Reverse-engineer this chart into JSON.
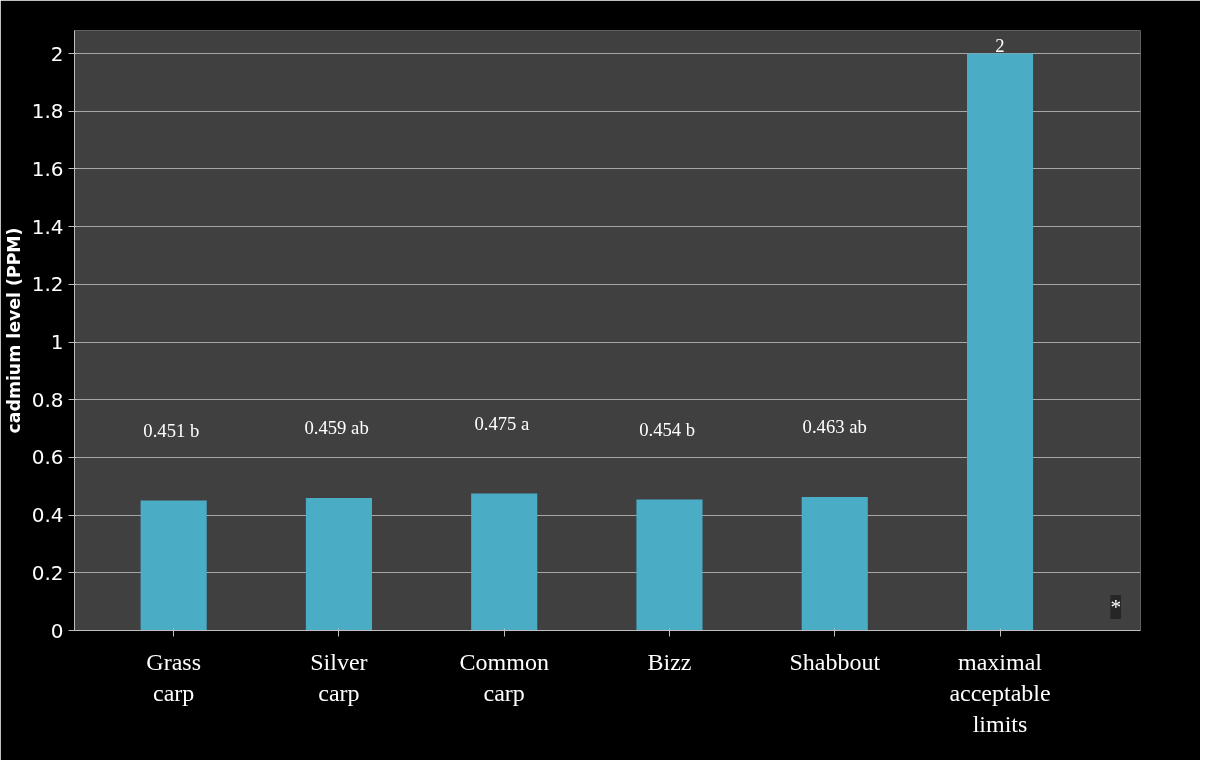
{
  "chart_data": {
    "type": "bar",
    "ylabel": "cadmium level (PPM)",
    "categories": [
      "Grass carp",
      "Silver carp",
      "Common carp",
      "Bizz",
      "Shabbout",
      "maximal acceptable limits"
    ],
    "values": [
      0.451,
      0.459,
      0.475,
      0.454,
      0.463,
      2
    ],
    "value_labels": [
      "0.451  b",
      "0.459  ab",
      "0.475  a",
      "0.454  b",
      "0.463 ab",
      "2"
    ],
    "color": "#4bacc6",
    "ylim": [
      0,
      2
    ],
    "yticks": [
      0,
      0.2,
      0.4,
      0.6,
      0.8,
      1,
      1.2,
      1.4,
      1.6,
      1.8,
      2
    ],
    "grid": "y",
    "annotations": [
      "*"
    ]
  }
}
